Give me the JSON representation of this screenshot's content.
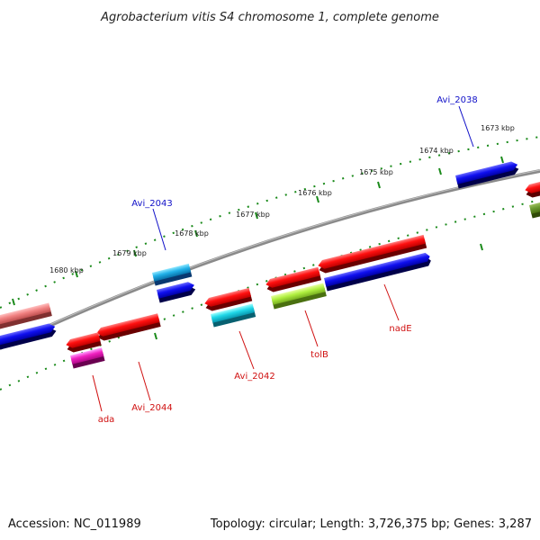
{
  "title": "Agrobacterium vitis S4 chromosome 1, complete genome",
  "footer": {
    "accession": "Accession: NC_011989",
    "summary": "Topology: circular; Length: 3,726,375 bp; Genes: 3,287"
  },
  "ticks": [
    "1673 kbp",
    "1674 kbp",
    "1675 kbp",
    "1676 kbp",
    "1677 kbp",
    "1678 kbp",
    "1679 kbp",
    "1680 kbp"
  ],
  "genes": {
    "Avi_2038": "Avi_2038",
    "Avi_2043": "Avi_2043",
    "ada": "ada",
    "Avi_2044": "Avi_2044",
    "Avi_2042": "Avi_2042",
    "tolB": "tolB",
    "nadE": "nadE"
  },
  "colors": {
    "forward_label": "#1010c8",
    "reverse_label": "#d01010",
    "backbone": "#808080",
    "tick_ring": "#1a8a1a"
  }
}
